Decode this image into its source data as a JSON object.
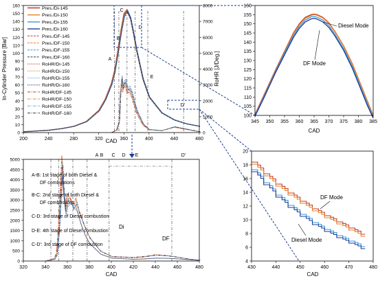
{
  "chart_data": [
    {
      "id": "main",
      "type": "line",
      "xlabel": "CAD",
      "ylabel_left": "In-Cylinder Pressure [Bar]",
      "ylabel_right": "RoHR [J/Deg.]",
      "xlim": [
        200,
        480
      ],
      "ylim_left": [
        0,
        160
      ],
      "ylim_right": [
        0,
        8000
      ],
      "xticks": [
        200,
        240,
        280,
        320,
        360,
        400,
        440,
        480
      ],
      "yticks_left": [
        0,
        10,
        20,
        30,
        40,
        50,
        60,
        70,
        80,
        90,
        100,
        110,
        120,
        130,
        140,
        150,
        160
      ],
      "yticks_right": [
        0,
        1000,
        2000,
        3000,
        4000,
        5000,
        6000,
        7000,
        8000
      ],
      "stage_lines": [
        {
          "label": "A",
          "x": 345
        },
        {
          "label": "B",
          "x": 352
        },
        {
          "label": "C",
          "x": 365
        },
        {
          "label": "D",
          "x": 378
        },
        {
          "label": "E",
          "x": 398
        },
        {
          "label": "D'",
          "x": 455
        }
      ],
      "legend": [
        "Pres./Di-145",
        "Pres./Di-150",
        "Pres./Di-155",
        "Pres./Di-160",
        "Pres./DF-145",
        "Pres./DF-150",
        "Pres./DF-155",
        "Pres./DF-160",
        "RoHR/Di-145",
        "RoHR/Di-150",
        "RoHR/Di-155",
        "RoHR/Di-160",
        "RoHR/DF-145",
        "RoHR/DF-150",
        "RoHR/DF-155",
        "RoHR/DF-160"
      ],
      "pressure_x": [
        200,
        220,
        240,
        260,
        280,
        300,
        320,
        330,
        340,
        345,
        350,
        355,
        360,
        365,
        370,
        375,
        380,
        390,
        400,
        420,
        440,
        460,
        480
      ],
      "pressure_y": [
        1,
        2,
        3,
        5,
        8,
        14,
        28,
        42,
        62,
        78,
        102,
        128,
        150,
        155,
        146,
        126,
        104,
        68,
        45,
        25,
        16,
        11,
        8
      ],
      "rohr_x": [
        340,
        348,
        352,
        354,
        356,
        358,
        360,
        362,
        365,
        368,
        372,
        376,
        380,
        390,
        400,
        420,
        440,
        460,
        480
      ],
      "rohr_y": [
        0,
        150,
        700,
        2400,
        3300,
        2700,
        3000,
        3100,
        2600,
        2700,
        2400,
        1800,
        1300,
        500,
        180,
        120,
        350,
        200,
        50
      ]
    },
    {
      "id": "zoom_peak",
      "type": "line",
      "xlabel": "CAD",
      "xlim": [
        345,
        385
      ],
      "ylim": [
        100,
        160
      ],
      "xticks": [
        345,
        350,
        355,
        360,
        365,
        370,
        375,
        380,
        385
      ],
      "yticks": [
        100,
        105,
        110,
        115,
        120,
        125,
        130,
        135,
        140,
        145,
        150,
        155,
        160
      ],
      "annotations": [
        "Diesel Mode",
        "DF Mode"
      ],
      "x": [
        345,
        348,
        350,
        352,
        355,
        358,
        360,
        362,
        364,
        365,
        366,
        368,
        370,
        372,
        375,
        378,
        380,
        383,
        385
      ],
      "series": [
        {
          "group": "Diesel",
          "values": [
            100.5,
            111,
            118,
            125,
            135,
            145,
            150,
            153.5,
            155,
            155.3,
            155,
            153.5,
            150.5,
            146,
            138,
            128,
            120,
            108,
            100
          ]
        },
        {
          "group": "Diesel",
          "values": [
            100,
            110.5,
            117.5,
            124.5,
            134.5,
            144.5,
            149.5,
            153,
            154.6,
            155,
            154.7,
            153.2,
            150.2,
            145.8,
            137.8,
            127.8,
            119.8,
            107.8,
            99.8
          ]
        },
        {
          "group": "DF",
          "values": [
            100,
            110,
            117,
            124,
            134,
            143.5,
            148.5,
            152,
            153.8,
            154,
            153.6,
            152,
            149,
            144.5,
            136.5,
            126.5,
            118.5,
            106.5,
            99
          ]
        },
        {
          "group": "DF",
          "values": [
            99.5,
            109.5,
            116.5,
            123.5,
            133,
            142.5,
            147.5,
            151,
            152.7,
            153,
            152.6,
            151,
            148,
            143.5,
            135.5,
            125.5,
            117.5,
            105.5,
            98.5
          ]
        }
      ]
    },
    {
      "id": "zoom_tail",
      "type": "line",
      "xlabel": "CAD",
      "xlim": [
        430,
        480
      ],
      "ylim": [
        4,
        20
      ],
      "xticks": [
        430,
        440,
        450,
        460,
        470,
        480
      ],
      "yticks": [
        4,
        6,
        8,
        10,
        12,
        14,
        16,
        18,
        20
      ],
      "annotations": [
        "DF Mode",
        "Diesel Mode"
      ],
      "x": [
        430,
        435,
        440,
        445,
        450,
        455,
        460,
        465,
        470,
        475
      ],
      "series": [
        {
          "group": "DF",
          "values": [
            18.4,
            16.7,
            15.2,
            13.9,
            12.7,
            11.6,
            10.6,
            9.7,
            8.8,
            7.9
          ]
        },
        {
          "group": "DF",
          "values": [
            18.1,
            16.4,
            14.9,
            13.6,
            12.4,
            11.3,
            10.3,
            9.4,
            8.5,
            7.6
          ]
        },
        {
          "group": "Diesel",
          "values": [
            17.3,
            15.4,
            13.6,
            12.1,
            10.8,
            9.6,
            8.6,
            7.7,
            6.9,
            6.1
          ]
        },
        {
          "group": "Diesel",
          "values": [
            17.0,
            15.1,
            13.3,
            11.8,
            10.5,
            9.3,
            8.3,
            7.4,
            6.6,
            5.8
          ]
        }
      ]
    },
    {
      "id": "rohr_detail",
      "type": "line",
      "xlabel": "CAD",
      "xlim": [
        320,
        480
      ],
      "ylim": [
        0,
        5000
      ],
      "xticks": [
        320,
        340,
        360,
        380,
        400,
        420,
        440,
        460,
        480
      ],
      "yticks": [
        0,
        500,
        1000,
        1500,
        2000,
        2500,
        3000,
        3500,
        4000,
        4500,
        5000
      ],
      "stage_lines": [
        {
          "label": "A",
          "x": 345
        },
        {
          "label": "B",
          "x": 352
        },
        {
          "label": "C",
          "x": 365
        },
        {
          "label": "D",
          "x": 378
        },
        {
          "label": "E",
          "x": 398
        },
        {
          "label": "D'",
          "x": 455
        }
      ],
      "annotations": [
        "Di",
        "DF"
      ],
      "notes": [
        "A-B: 1st stage of both Diesel &",
        "DF combustions",
        "B-C: 2nd stage of both Diesel &",
        "DF combustions",
        "C-D: 3rd stage of Diesel combustion",
        "D-E: 4th stage of Diesel combustion",
        "C-D': 3rd stage of DF combustion"
      ],
      "x": [
        340,
        348,
        350,
        352,
        354,
        355,
        356,
        358,
        360,
        362,
        365,
        368,
        370,
        372,
        376,
        380,
        390,
        400,
        420,
        430,
        440,
        450,
        460,
        470,
        480
      ],
      "series": [
        {
          "group": "DF",
          "values": [
            0,
            120,
            400,
            1800,
            4200,
            5200,
            4000,
            2700,
            3300,
            3200,
            2800,
            3100,
            2600,
            2300,
            1700,
            1200,
            500,
            230,
            180,
            230,
            310,
            280,
            200,
            100,
            40
          ]
        },
        {
          "group": "Diesel",
          "values": [
            0,
            100,
            350,
            1600,
            3800,
            4600,
            3600,
            2500,
            3000,
            3100,
            2900,
            2700,
            2300,
            1900,
            1300,
            900,
            350,
            150,
            90,
            110,
            150,
            140,
            110,
            70,
            30
          ]
        }
      ]
    }
  ]
}
